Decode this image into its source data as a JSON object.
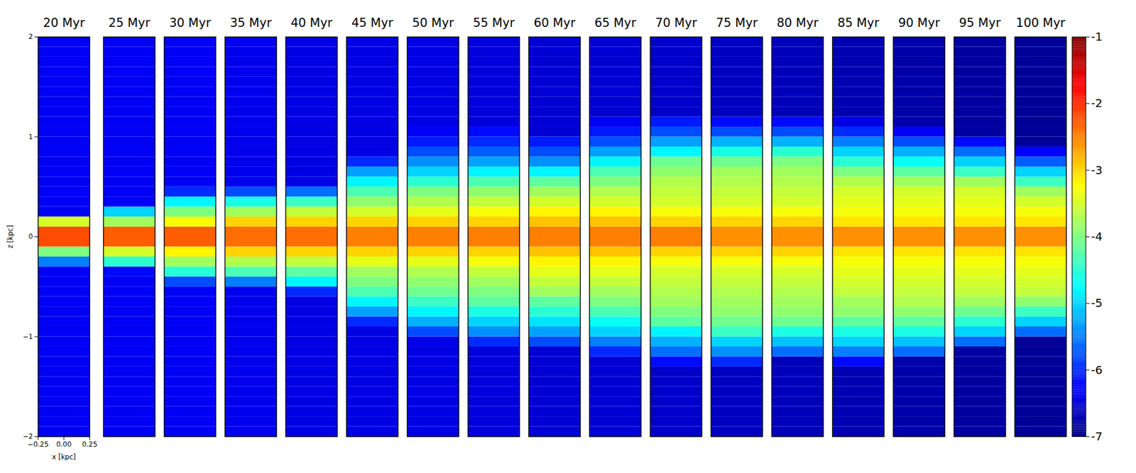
{
  "chart_data": {
    "type": "heatmap",
    "x_label": "x [kpc]",
    "y_label": "z [kpc]",
    "xlim": [
      -0.25,
      0.25
    ],
    "xticks": [
      {
        "value": -0.25,
        "label": "−0.25"
      },
      {
        "value": 0,
        "label": "0.00"
      },
      {
        "value": 0.25,
        "label": "0.25"
      }
    ],
    "ylim": [
      -2,
      2
    ],
    "yticks": [
      {
        "value": -2,
        "label": "−2"
      },
      {
        "value": -1,
        "label": "−1"
      },
      0,
      1,
      2
    ],
    "z_bins": [
      -2,
      -1.9,
      -1.8,
      -1.7,
      -1.6,
      -1.5,
      -1.4,
      -1.3,
      -1.2,
      -1.1,
      -1,
      -0.9,
      -0.8,
      -0.7,
      -0.6,
      -0.5,
      -0.4,
      -0.3,
      -0.2,
      -0.1,
      0,
      0.1,
      0.2,
      0.3,
      0.4,
      0.5,
      0.6,
      0.7,
      0.8,
      0.9,
      1,
      1.1,
      1.2,
      1.3,
      1.4,
      1.5,
      1.6,
      1.7,
      1.8,
      1.9,
      2
    ],
    "colorbar": {
      "range": [
        -7,
        -1
      ],
      "ticks": [
        -7,
        -6,
        -5,
        -4,
        -3,
        -2,
        -1
      ]
    },
    "panels": [
      {
        "title": "20 Myr",
        "values": [
          -6.3,
          -6.3,
          -6.3,
          -6.3,
          -6.3,
          -6.3,
          -6.3,
          -6.3,
          -6.3,
          -6.3,
          -6.3,
          -6.3,
          -6.3,
          -6.3,
          -6.3,
          -6.3,
          -6.3,
          -5.5,
          -4,
          -2.2,
          -2.2,
          -3.5,
          -6.3,
          -6.3,
          -6.3,
          -6.3,
          -6.3,
          -6.3,
          -6.3,
          -6.3,
          -6.3,
          -6.3,
          -6.3,
          -6.3,
          -6.3,
          -6.3,
          -6.3,
          -6.3,
          -6.3,
          -6.3
        ]
      },
      {
        "title": "25 Myr",
        "values": [
          -6.3,
          -6.3,
          -6.3,
          -6.3,
          -6.3,
          -6.3,
          -6.3,
          -6.3,
          -6.3,
          -6.3,
          -6.3,
          -6.3,
          -6.3,
          -6.3,
          -6.3,
          -6.3,
          -6.2,
          -4.5,
          -3.5,
          -2.3,
          -2.3,
          -3.8,
          -5,
          -6.3,
          -6.3,
          -6.3,
          -6.3,
          -6.3,
          -6.3,
          -6.3,
          -6.3,
          -6.3,
          -6.3,
          -6.3,
          -6.3,
          -6.3,
          -6.3,
          -6.3,
          -6.3,
          -6.3
        ]
      },
      {
        "title": "30 Myr",
        "values": [
          -6.3,
          -6.3,
          -6.3,
          -6.3,
          -6.3,
          -6.3,
          -6.3,
          -6.3,
          -6.3,
          -6.3,
          -6.3,
          -6.3,
          -6.3,
          -6.3,
          -6.3,
          -5.8,
          -4.5,
          -3.8,
          -3.2,
          -2.3,
          -2.3,
          -3.3,
          -4,
          -4.8,
          -6,
          -6.3,
          -6.3,
          -6.3,
          -6.3,
          -6.3,
          -6.3,
          -6.3,
          -6.3,
          -6.3,
          -6.3,
          -6.3,
          -6.3,
          -6.3,
          -6.3,
          -6.3
        ]
      },
      {
        "title": "35 Myr",
        "values": [
          -6.35,
          -6.35,
          -6.35,
          -6.35,
          -6.35,
          -6.35,
          -6.35,
          -6.35,
          -6.35,
          -6.35,
          -6.35,
          -6.35,
          -6.35,
          -6.35,
          -6.35,
          -5.5,
          -4.3,
          -3.7,
          -3,
          -2.4,
          -2.4,
          -3,
          -3.8,
          -4.6,
          -5.8,
          -6.35,
          -6.35,
          -6.35,
          -6.35,
          -6.35,
          -6.35,
          -6.35,
          -6.35,
          -6.35,
          -6.35,
          -6.35,
          -6.35,
          -6.35,
          -6.35,
          -6.35
        ]
      },
      {
        "title": "40 Myr",
        "values": [
          -6.4,
          -6.4,
          -6.4,
          -6.4,
          -6.4,
          -6.4,
          -6.4,
          -6.4,
          -6.4,
          -6.4,
          -6.4,
          -6.4,
          -6.4,
          -6.4,
          -6,
          -4.8,
          -4.2,
          -3.6,
          -3,
          -2.4,
          -2.4,
          -3,
          -3.6,
          -4.4,
          -5.6,
          -6.4,
          -6.4,
          -6.4,
          -6.4,
          -6.4,
          -6.4,
          -6.4,
          -6.4,
          -6.4,
          -6.4,
          -6.4,
          -6.4,
          -6.4,
          -6.4,
          -6.4
        ]
      },
      {
        "title": "45 Myr",
        "values": [
          -6.4,
          -6.4,
          -6.4,
          -6.4,
          -6.4,
          -6.4,
          -6.4,
          -6.4,
          -6.4,
          -6.4,
          -6.4,
          -6,
          -5.3,
          -4.8,
          -4.3,
          -4,
          -3.8,
          -3.4,
          -3,
          -2.5,
          -2.5,
          -3,
          -3.5,
          -3.9,
          -4.3,
          -4.8,
          -5.3,
          -6,
          -6.4,
          -6.4,
          -6.4,
          -6.4,
          -6.4,
          -6.4,
          -6.4,
          -6.4,
          -6.4,
          -6.4,
          -6.4,
          -6.4
        ]
      },
      {
        "title": "50 Myr",
        "values": [
          -6.4,
          -6.4,
          -6.4,
          -6.4,
          -6.4,
          -6.4,
          -6.4,
          -6.4,
          -6.4,
          -6.4,
          -5.8,
          -5.2,
          -4.8,
          -4.4,
          -4.1,
          -3.9,
          -3.7,
          -3.4,
          -3,
          -2.5,
          -2.5,
          -3,
          -3.4,
          -3.7,
          -4,
          -4.5,
          -5,
          -5.4,
          -5.8,
          -6.1,
          -6.3,
          -6.4,
          -6.4,
          -6.4,
          -6.4,
          -6.4,
          -6.4,
          -6.4,
          -6.4,
          -6.4
        ]
      },
      {
        "title": "55 Myr",
        "values": [
          -6.45,
          -6.45,
          -6.45,
          -6.45,
          -6.45,
          -6.45,
          -6.45,
          -6.45,
          -6.45,
          -6,
          -5.4,
          -5,
          -4.6,
          -4.2,
          -4,
          -3.8,
          -3.6,
          -3.3,
          -3,
          -2.5,
          -2.5,
          -3,
          -3.3,
          -3.6,
          -3.9,
          -4.3,
          -4.8,
          -5.3,
          -5.7,
          -6,
          -6.2,
          -6.45,
          -6.45,
          -6.45,
          -6.45,
          -6.45,
          -6.45,
          -6.45,
          -6.45,
          -6.45
        ]
      },
      {
        "title": "60 Myr",
        "values": [
          -6.5,
          -6.5,
          -6.5,
          -6.5,
          -6.5,
          -6.5,
          -6.5,
          -6.5,
          -6.5,
          -5.8,
          -5.3,
          -4.9,
          -4.5,
          -4.2,
          -3.8,
          -3.6,
          -3.4,
          -3.2,
          -2.9,
          -2.5,
          -2.5,
          -2.9,
          -3.2,
          -3.5,
          -3.8,
          -4.2,
          -4.8,
          -5.4,
          -5.8,
          -6.1,
          -6.5,
          -6.5,
          -6.5,
          -6.5,
          -6.5,
          -6.5,
          -6.5,
          -6.5,
          -6.5,
          -6.5
        ]
      },
      {
        "title": "65 Myr",
        "values": [
          -6.5,
          -6.5,
          -6.5,
          -6.5,
          -6.5,
          -6.5,
          -6.5,
          -6.5,
          -6,
          -5.5,
          -5,
          -4.7,
          -4.3,
          -4,
          -3.8,
          -3.6,
          -3.4,
          -3.2,
          -2.9,
          -2.5,
          -2.5,
          -2.9,
          -3.2,
          -3.5,
          -3.7,
          -4,
          -4.3,
          -4.8,
          -5.3,
          -5.8,
          -6.1,
          -6.3,
          -6.5,
          -6.5,
          -6.5,
          -6.5,
          -6.5,
          -6.5,
          -6.5,
          -6.5
        ]
      },
      {
        "title": "70 Myr",
        "values": [
          -6.55,
          -6.55,
          -6.55,
          -6.55,
          -6.55,
          -6.55,
          -6.55,
          -6.2,
          -5.6,
          -5.2,
          -4.8,
          -4.2,
          -4,
          -3.8,
          -3.7,
          -3.6,
          -3.5,
          -3.3,
          -3,
          -2.5,
          -2.5,
          -3,
          -3.3,
          -3.5,
          -3.6,
          -3.7,
          -3.9,
          -4.1,
          -4.8,
          -5.3,
          -5.8,
          -6.1,
          -6.55,
          -6.55,
          -6.55,
          -6.55,
          -6.55,
          -6.55,
          -6.55,
          -6.55
        ]
      },
      {
        "title": "75 Myr",
        "values": [
          -6.6,
          -6.6,
          -6.6,
          -6.6,
          -6.6,
          -6.6,
          -6.6,
          -6,
          -5.4,
          -5,
          -4.4,
          -4.1,
          -3.9,
          -3.8,
          -3.7,
          -3.6,
          -3.5,
          -3.3,
          -3,
          -2.6,
          -2.6,
          -3,
          -3.3,
          -3.5,
          -3.6,
          -3.7,
          -3.8,
          -4.1,
          -4.6,
          -5.2,
          -5.8,
          -6.2,
          -6.6,
          -6.6,
          -6.6,
          -6.6,
          -6.6,
          -6.6,
          -6.6,
          -6.6
        ]
      },
      {
        "title": "80 Myr",
        "values": [
          -6.65,
          -6.65,
          -6.65,
          -6.65,
          -6.65,
          -6.65,
          -6.65,
          -6.65,
          -5.6,
          -5.1,
          -4.6,
          -4.1,
          -3.9,
          -3.8,
          -3.7,
          -3.6,
          -3.5,
          -3.3,
          -3,
          -2.6,
          -2.6,
          -3,
          -3.3,
          -3.5,
          -3.6,
          -3.7,
          -3.8,
          -4,
          -4.5,
          -5.2,
          -5.8,
          -6.2,
          -6.65,
          -6.65,
          -6.65,
          -6.65,
          -6.65,
          -6.65,
          -6.65,
          -6.65
        ]
      },
      {
        "title": "85 Myr",
        "values": [
          -6.7,
          -6.7,
          -6.7,
          -6.7,
          -6.7,
          -6.7,
          -6.7,
          -6.2,
          -5.5,
          -5,
          -4.6,
          -4.2,
          -3.9,
          -3.8,
          -3.6,
          -3.5,
          -3.4,
          -3.3,
          -3.1,
          -2.6,
          -2.6,
          -3.1,
          -3.3,
          -3.4,
          -3.5,
          -3.7,
          -4,
          -4.5,
          -5,
          -5.5,
          -6,
          -6.4,
          -6.7,
          -6.7,
          -6.7,
          -6.7,
          -6.7,
          -6.7,
          -6.7,
          -6.7
        ]
      },
      {
        "title": "90 Myr",
        "values": [
          -6.75,
          -6.75,
          -6.75,
          -6.75,
          -6.75,
          -6.75,
          -6.75,
          -6.75,
          -5.6,
          -5.1,
          -4.6,
          -4.2,
          -3.9,
          -3.7,
          -3.6,
          -3.5,
          -3.4,
          -3.3,
          -3.1,
          -2.6,
          -2.6,
          -3.1,
          -3.3,
          -3.4,
          -3.5,
          -3.8,
          -4.2,
          -4.7,
          -5.2,
          -5.8,
          -6.3,
          -6.75,
          -6.75,
          -6.75,
          -6.75,
          -6.75,
          -6.75,
          -6.75,
          -6.75,
          -6.75
        ]
      },
      {
        "title": "95 Myr",
        "values": [
          -6.8,
          -6.8,
          -6.8,
          -6.8,
          -6.8,
          -6.8,
          -6.8,
          -6.8,
          -6.8,
          -5.6,
          -5,
          -4.5,
          -4.1,
          -3.8,
          -3.6,
          -3.5,
          -3.4,
          -3.3,
          -3.1,
          -2.6,
          -2.6,
          -3.1,
          -3.3,
          -3.4,
          -3.5,
          -3.8,
          -4.4,
          -5,
          -5.6,
          -6.2,
          -6.8,
          -6.8,
          -6.8,
          -6.8,
          -6.8,
          -6.8,
          -6.8,
          -6.8,
          -6.8,
          -6.8
        ]
      },
      {
        "title": "100 Myr",
        "values": [
          -6.85,
          -6.85,
          -6.85,
          -6.85,
          -6.85,
          -6.85,
          -6.85,
          -6.85,
          -6.85,
          -6.85,
          -5.6,
          -5,
          -4.4,
          -3.9,
          -3.6,
          -3.5,
          -3.4,
          -3.3,
          -3.1,
          -2.6,
          -2.6,
          -3.1,
          -3.3,
          -3.5,
          -3.8,
          -4.4,
          -5,
          -5.7,
          -6.3,
          -6.85,
          -6.85,
          -6.85,
          -6.85,
          -6.85,
          -6.85,
          -6.85,
          -6.85,
          -6.85,
          -6.85,
          -6.85
        ]
      }
    ]
  }
}
